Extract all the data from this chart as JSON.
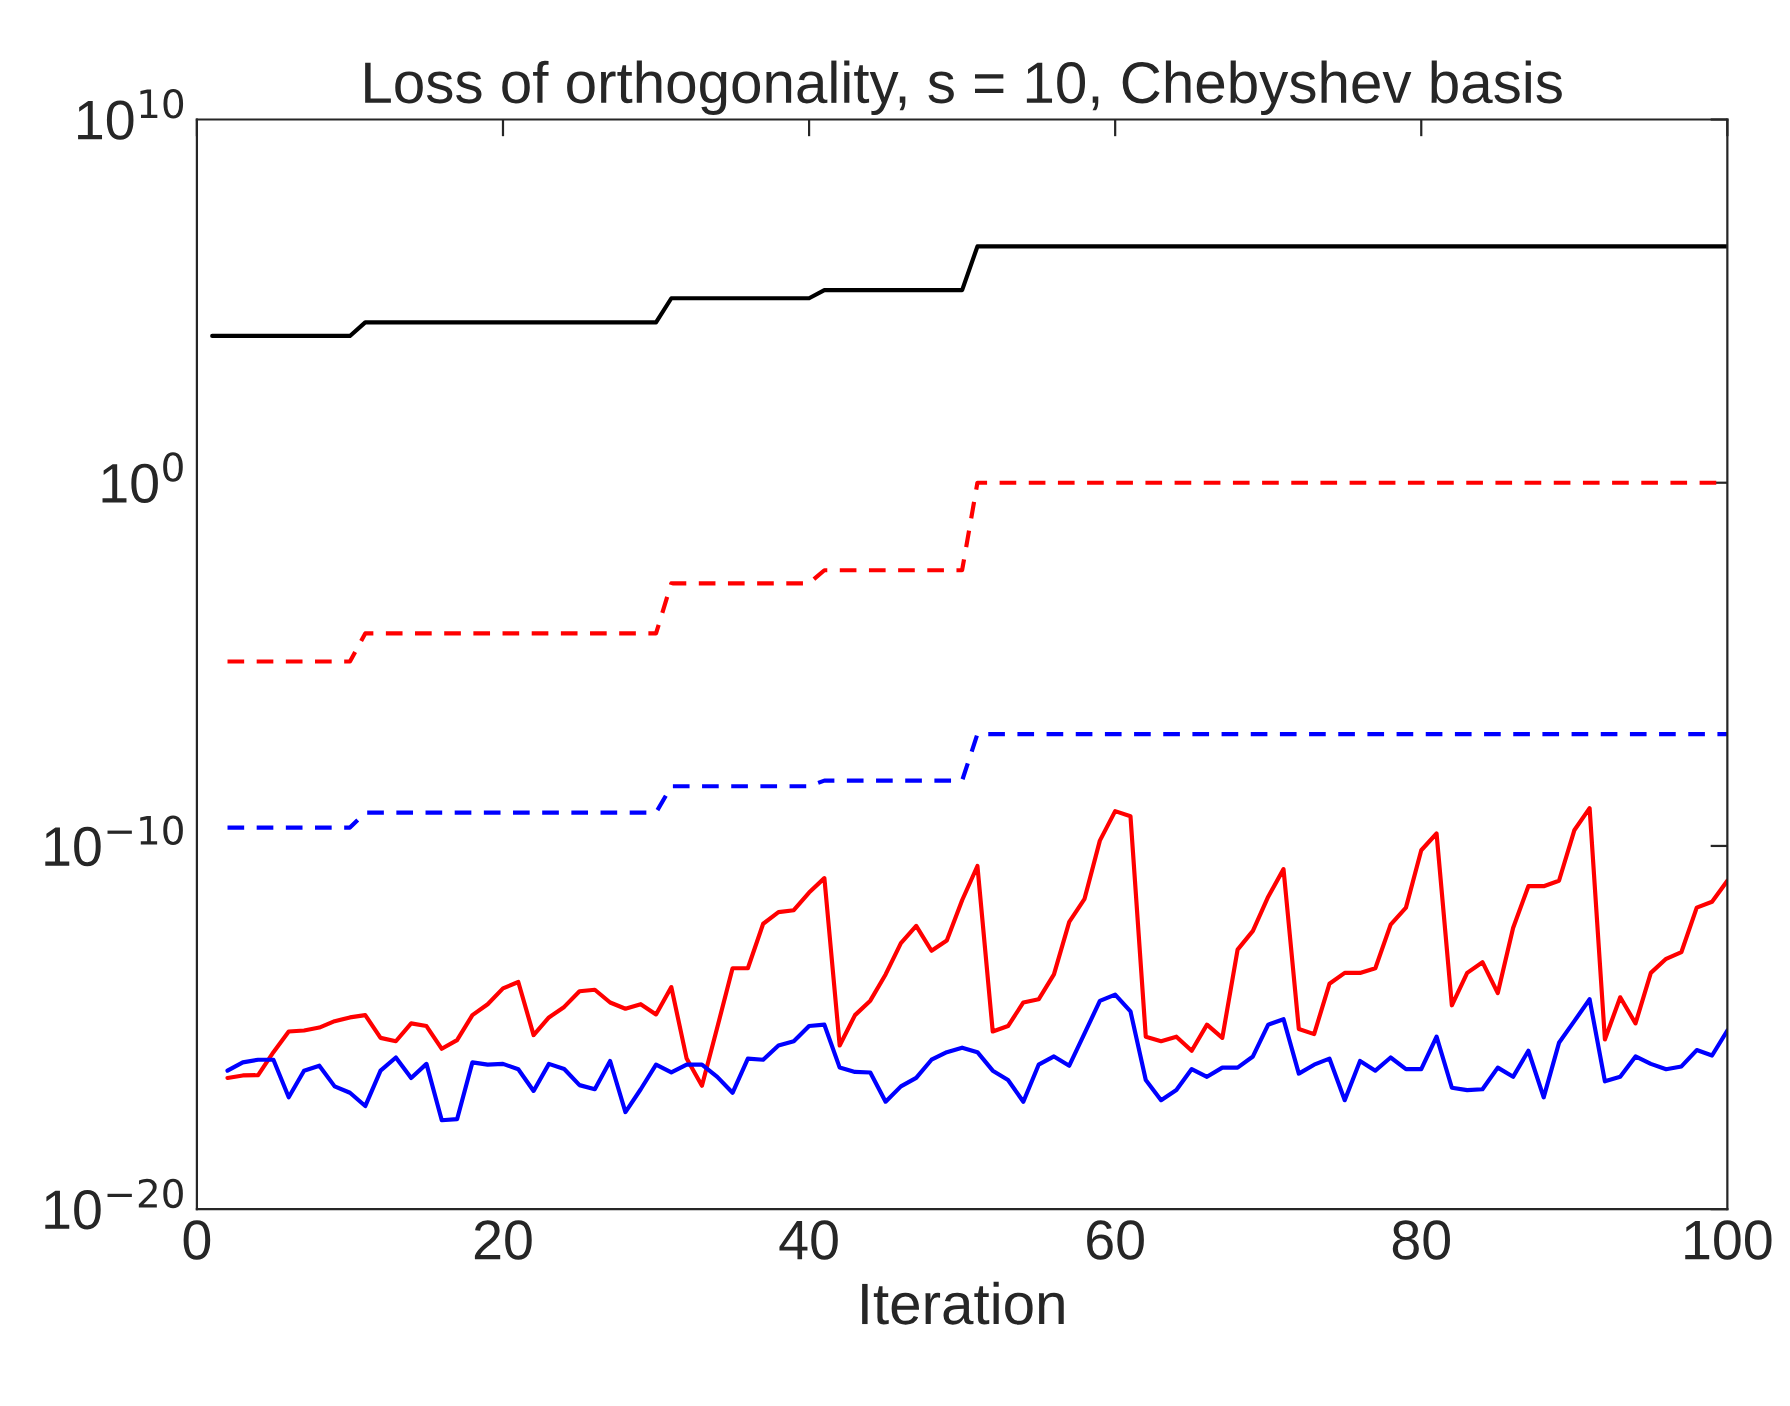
{
  "chart_data": {
    "type": "line",
    "title": "Loss of orthogonality, s = 10, Chebyshev basis",
    "xlabel": "Iteration",
    "log": "y",
    "grid": false,
    "legend": false,
    "xlim": [
      0,
      100
    ],
    "xticks": [
      0,
      20,
      40,
      60,
      80,
      100
    ],
    "ylim": [
      1e-20,
      10000000000.0
    ],
    "yticks": [
      {
        "value": 1e-20,
        "label": "10$^{−20}$"
      },
      {
        "value": 1e-10,
        "label": "10$^{−10}$"
      },
      {
        "value": 1,
        "label": "10$^{0}$"
      },
      {
        "value": 10000000000.0,
        "label": "10$^{10}$"
      }
    ],
    "series": [
      {
        "color": "#000000",
        "line_style": "solid",
        "x": [
          1,
          10,
          11,
          30,
          31,
          40,
          41,
          50,
          51,
          100
        ],
        "values": [
          11000.0,
          11000.0,
          26000.0,
          26000.0,
          120000.0,
          120000.0,
          200000.0,
          200000.0,
          3200000.0,
          3200000.0
        ]
      },
      {
        "color": "#ff0000",
        "line_style": "dashed",
        "x": [
          2,
          10,
          11,
          30,
          31,
          40,
          41,
          50,
          51,
          100
        ],
        "values": [
          1.2e-05,
          1.2e-05,
          7.1e-05,
          7.1e-05,
          0.0017,
          0.0017,
          0.0039,
          0.0039,
          1,
          1
        ]
      },
      {
        "color": "#0000ff",
        "line_style": "dashed",
        "x": [
          2,
          10,
          11,
          30,
          31,
          40,
          41,
          50,
          51,
          100
        ],
        "values": [
          3.2e-10,
          3.2e-10,
          8.3e-10,
          8.3e-10,
          4.4e-09,
          4.4e-09,
          6.3e-09,
          6.3e-09,
          1.2e-07,
          1.2e-07
        ]
      },
      {
        "color": "#ff0000",
        "line_style": "solid",
        "x": [
          2,
          3,
          4,
          5,
          6,
          7,
          8,
          9,
          10,
          11,
          12,
          13,
          14,
          15,
          16,
          17,
          18,
          19,
          20,
          21,
          22,
          23,
          24,
          25,
          26,
          27,
          28,
          29,
          30,
          31,
          32,
          33,
          34,
          35,
          36,
          37,
          38,
          39,
          40,
          41,
          42,
          43,
          44,
          45,
          46,
          47,
          48,
          49,
          50,
          51,
          52,
          53,
          54,
          55,
          56,
          57,
          58,
          59,
          60,
          61,
          62,
          63,
          64,
          65,
          66,
          67,
          68,
          69,
          70,
          71,
          72,
          73,
          74,
          75,
          76,
          77,
          78,
          79,
          80,
          81,
          82,
          83,
          84,
          85,
          86,
          87,
          88,
          89,
          90,
          91,
          92,
          93,
          94,
          95,
          96,
          97,
          98,
          99,
          100
        ],
        "values": [
          4.1e-17,
          4.8e-17,
          4.9e-17,
          2.1e-16,
          7.8e-16,
          8.3e-16,
          1e-15,
          1.5e-15,
          1.9e-15,
          2.2e-15,
          5.2e-16,
          4.2e-16,
          1.3e-15,
          1.1e-15,
          2.6e-16,
          4.5e-16,
          2.2e-15,
          4.4e-15,
          1.2e-14,
          1.8e-14,
          6.2e-16,
          1.9e-15,
          3.7e-15,
          1e-14,
          1.1e-14,
          4.9e-15,
          3.3e-15,
          4.4e-15,
          2.3e-15,
          1.3e-14,
          1.4e-16,
          2.5e-17,
          1e-15,
          4.3e-14,
          4.3e-14,
          7.2e-13,
          1.5e-12,
          1.7e-12,
          5.2e-12,
          1.3e-11,
          3.2e-16,
          2.2e-15,
          5.5e-15,
          2.9e-14,
          2.1e-13,
          6.3e-13,
          1.3e-13,
          2.5e-13,
          3.2e-12,
          2.8e-11,
          7.8e-16,
          1.1e-15,
          4.9e-15,
          6e-15,
          2.9e-14,
          8.1e-13,
          3.5e-12,
          1.4e-10,
          9.1e-10,
          6.6e-10,
          5.6e-16,
          4.2e-16,
          5.6e-16,
          2.3e-16,
          1.2e-15,
          5.2e-16,
          1.4e-13,
          4.6e-13,
          4e-12,
          2.3e-11,
          9.1e-16,
          6.6e-16,
          1.6e-14,
          3.2e-14,
          3.2e-14,
          4.3e-14,
          6.8e-13,
          2e-12,
          7.6e-11,
          2.2e-10,
          4.1e-15,
          3.2e-14,
          6.3e-14,
          8.9e-15,
          5.5e-13,
          7.8e-12,
          7.8e-12,
          1.1e-11,
          2.7e-10,
          1.1e-09,
          4.7e-16,
          6.8e-15,
          1.3e-15,
          3.2e-14,
          7.8e-14,
          1.2e-13,
          2e-12,
          2.9e-12,
          1.1e-11
        ]
      },
      {
        "color": "#0000ff",
        "line_style": "solid",
        "x": [
          2,
          3,
          4,
          5,
          6,
          7,
          8,
          9,
          10,
          11,
          12,
          13,
          14,
          15,
          16,
          17,
          18,
          19,
          20,
          21,
          22,
          23,
          24,
          25,
          26,
          27,
          28,
          29,
          30,
          31,
          32,
          33,
          34,
          35,
          36,
          37,
          38,
          39,
          40,
          41,
          42,
          43,
          44,
          45,
          46,
          47,
          48,
          49,
          50,
          51,
          52,
          53,
          54,
          55,
          56,
          57,
          58,
          59,
          60,
          61,
          62,
          63,
          64,
          65,
          66,
          67,
          68,
          69,
          70,
          71,
          72,
          73,
          74,
          75,
          76,
          77,
          78,
          79,
          80,
          81,
          82,
          83,
          84,
          85,
          86,
          87,
          88,
          89,
          90,
          91,
          92,
          93,
          94,
          95,
          96,
          97,
          98,
          99,
          100
        ],
        "values": [
          6.5e-17,
          1.1e-16,
          1.3e-16,
          1.3e-16,
          1.2e-17,
          6.5e-17,
          8.9e-17,
          2.4e-17,
          1.6e-17,
          6.9e-18,
          6.5e-17,
          1.5e-16,
          4.1e-17,
          1e-16,
          2.8e-18,
          3e-18,
          1.1e-16,
          9.5e-17,
          1e-16,
          7.1e-17,
          1.8e-17,
          1e-16,
          7.2e-17,
          2.6e-17,
          2e-17,
          1.2e-16,
          4.7e-18,
          2e-17,
          9.5e-17,
          5.8e-17,
          9.5e-17,
          9.5e-17,
          4.4e-17,
          1.6e-17,
          1.4e-16,
          1.3e-16,
          3.2e-16,
          4.2e-16,
          1.1e-15,
          1.2e-15,
          7.9e-17,
          6e-17,
          5.8e-17,
          9.1e-18,
          2.4e-17,
          4.1e-17,
          1.3e-16,
          2.1e-16,
          2.8e-16,
          2.1e-16,
          6.5e-17,
          3.6e-17,
          9.1e-18,
          9.5e-17,
          1.6e-16,
          8.9e-17,
          6.9e-16,
          5.4e-15,
          8.1e-15,
          2.8e-15,
          3.6e-17,
          1e-17,
          1.9e-17,
          7.2e-17,
          4.4e-17,
          7.9e-17,
          7.9e-17,
          1.6e-16,
          1.2e-15,
          1.7e-15,
          5.4e-17,
          9.5e-17,
          1.4e-16,
          1e-17,
          1.2e-16,
          6.5e-17,
          1.5e-16,
          7.2e-17,
          7.2e-17,
          5.6e-16,
          2.2e-17,
          1.9e-17,
          2e-17,
          7.9e-17,
          4.4e-17,
          2.3e-16,
          1.2e-17,
          3.8e-16,
          1.5e-15,
          6e-15,
          3.3e-17,
          4.4e-17,
          1.6e-16,
          1e-16,
          7.1e-17,
          8.5e-17,
          2.4e-16,
          1.7e-16,
          8.3e-16
        ]
      }
    ]
  }
}
